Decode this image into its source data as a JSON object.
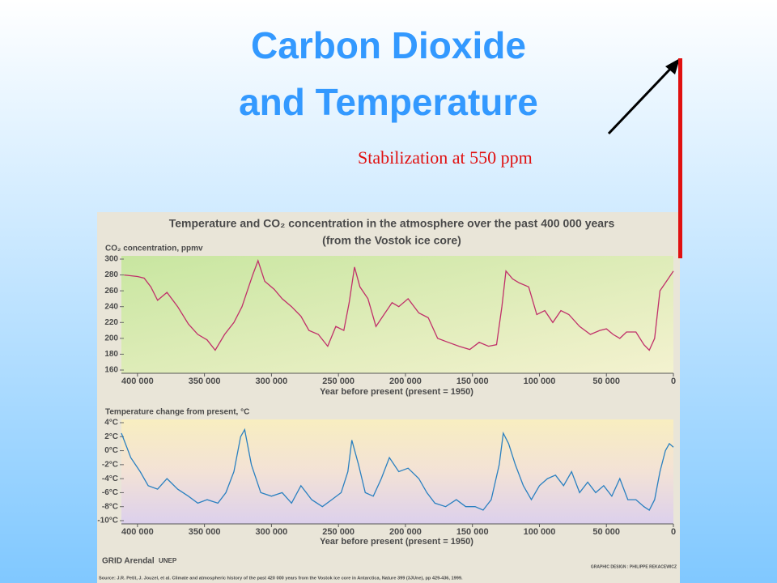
{
  "slide": {
    "title_lines": [
      "Carbon Dioxide",
      "and Temperature"
    ],
    "annotation": "Stabilization at 550 ppm"
  },
  "figure": {
    "title_lines": [
      "Temperature and CO₂ concentration in the atmosphere over the past 400 000 years",
      "(from the Vostok ice core)"
    ],
    "logo": "GRID Arendal",
    "logo2": "UNEP",
    "credit": "GRAPHIC DESIGN : PHILIPPE REKACEWICZ",
    "source": "Source: J.R. Petit, J. Jouzel, et al. Climate and atmospheric history of the past 420 000 years from the Vostok ice core in Antarctica, Nature 399 (3JUne), pp 429-436, 1999."
  },
  "chart_data": [
    {
      "type": "line",
      "y_label": "CO₂ concentration, ppmv",
      "x_label": "Year before present (present = 1950)",
      "color": "#c0306a",
      "x": [
        410000,
        400000,
        395000,
        390000,
        385000,
        378000,
        370000,
        362000,
        355000,
        348000,
        342000,
        335000,
        328000,
        322000,
        318000,
        314000,
        310000,
        305000,
        298000,
        292000,
        285000,
        278000,
        272000,
        265000,
        258000,
        252000,
        246000,
        242000,
        238000,
        234000,
        228000,
        222000,
        216000,
        210000,
        205000,
        198000,
        190000,
        183000,
        176000,
        168000,
        160000,
        152000,
        145000,
        138000,
        132000,
        128000,
        125000,
        120000,
        115000,
        108000,
        102000,
        96000,
        90000,
        84000,
        78000,
        70000,
        62000,
        55000,
        50000,
        45000,
        40000,
        35000,
        28000,
        22000,
        18000,
        14000,
        10000,
        6000,
        2000,
        0
      ],
      "values": [
        280,
        278,
        276,
        265,
        248,
        258,
        240,
        218,
        205,
        198,
        185,
        205,
        220,
        240,
        260,
        280,
        298,
        272,
        262,
        250,
        240,
        228,
        210,
        205,
        190,
        215,
        210,
        245,
        290,
        265,
        250,
        215,
        230,
        245,
        240,
        250,
        232,
        226,
        200,
        195,
        190,
        186,
        195,
        190,
        192,
        240,
        285,
        275,
        270,
        265,
        230,
        235,
        220,
        235,
        230,
        215,
        205,
        210,
        212,
        205,
        200,
        208,
        208,
        192,
        185,
        200,
        260,
        270,
        280,
        285
      ],
      "xlim": [
        412000,
        0
      ],
      "xticks": [
        {
          "value": 400000,
          "label": "400 000"
        },
        {
          "value": 350000,
          "label": "350 000"
        },
        {
          "value": 300000,
          "label": "300 000"
        },
        {
          "value": 250000,
          "label": "250 000"
        },
        {
          "value": 200000,
          "label": "200 000"
        },
        {
          "value": 150000,
          "label": "150 000"
        },
        {
          "value": 100000,
          "label": "100 000"
        },
        {
          "value": 50000,
          "label": "50 000"
        },
        0
      ],
      "ylim": [
        160,
        300
      ],
      "yticks": [
        160,
        180,
        200,
        220,
        240,
        260,
        280,
        300
      ]
    },
    {
      "type": "line",
      "y_label": "Temperature change from present, °C",
      "x_label": "Year before present (present = 1950)",
      "color": "#2a80c0",
      "x": [
        412000,
        405000,
        398000,
        392000,
        385000,
        378000,
        370000,
        362000,
        355000,
        348000,
        340000,
        334000,
        328000,
        323000,
        320000,
        315000,
        308000,
        300000,
        292000,
        285000,
        278000,
        270000,
        262000,
        255000,
        248000,
        243000,
        240000,
        235000,
        230000,
        224000,
        218000,
        212000,
        205000,
        198000,
        190000,
        184000,
        178000,
        170000,
        162000,
        155000,
        148000,
        142000,
        136000,
        130000,
        127000,
        123000,
        118000,
        112000,
        106000,
        100000,
        94000,
        88000,
        82000,
        76000,
        70000,
        64000,
        58000,
        52000,
        46000,
        40000,
        34000,
        28000,
        22000,
        18000,
        14000,
        10000,
        6000,
        3000,
        0
      ],
      "values": [
        2.5,
        -1,
        -3,
        -5,
        -5.5,
        -4,
        -5.5,
        -6.5,
        -7.5,
        -7,
        -7.5,
        -6,
        -3,
        2,
        3,
        -2,
        -6,
        -6.5,
        -6,
        -7.5,
        -5,
        -7,
        -8,
        -7,
        -6,
        -3,
        1.5,
        -2,
        -6,
        -6.5,
        -4,
        -1,
        -3,
        -2.5,
        -4,
        -6,
        -7.5,
        -8,
        -7,
        -8,
        -8,
        -8.5,
        -7,
        -2,
        2.5,
        1,
        -2,
        -5,
        -7,
        -5,
        -4,
        -3.5,
        -5,
        -3,
        -6,
        -4.5,
        -6,
        -5,
        -6.5,
        -4,
        -7,
        -7,
        -8,
        -8.5,
        -7,
        -3,
        0,
        1,
        0.5
      ],
      "xlim": [
        412000,
        0
      ],
      "xticks": [
        {
          "value": 400000,
          "label": "400 000"
        },
        {
          "value": 350000,
          "label": "350 000"
        },
        {
          "value": 300000,
          "label": "300 000"
        },
        {
          "value": 250000,
          "label": "250 000"
        },
        {
          "value": 200000,
          "label": "200 000"
        },
        {
          "value": 150000,
          "label": "150 000"
        },
        {
          "value": 100000,
          "label": "100 000"
        },
        {
          "value": 50000,
          "label": "50 000"
        },
        0
      ],
      "ylim": [
        -10,
        4
      ],
      "yticks": [
        {
          "value": -10,
          "label": "-10°C"
        },
        {
          "value": -8,
          "label": "-8°C"
        },
        {
          "value": -6,
          "label": "-6°C"
        },
        {
          "value": -4,
          "label": "-4°C"
        },
        {
          "value": -2,
          "label": "-2°C"
        },
        {
          "value": 0,
          "label": "0°C"
        },
        {
          "value": 2,
          "label": "2°C"
        },
        {
          "value": 4,
          "label": "4°C"
        }
      ]
    }
  ]
}
